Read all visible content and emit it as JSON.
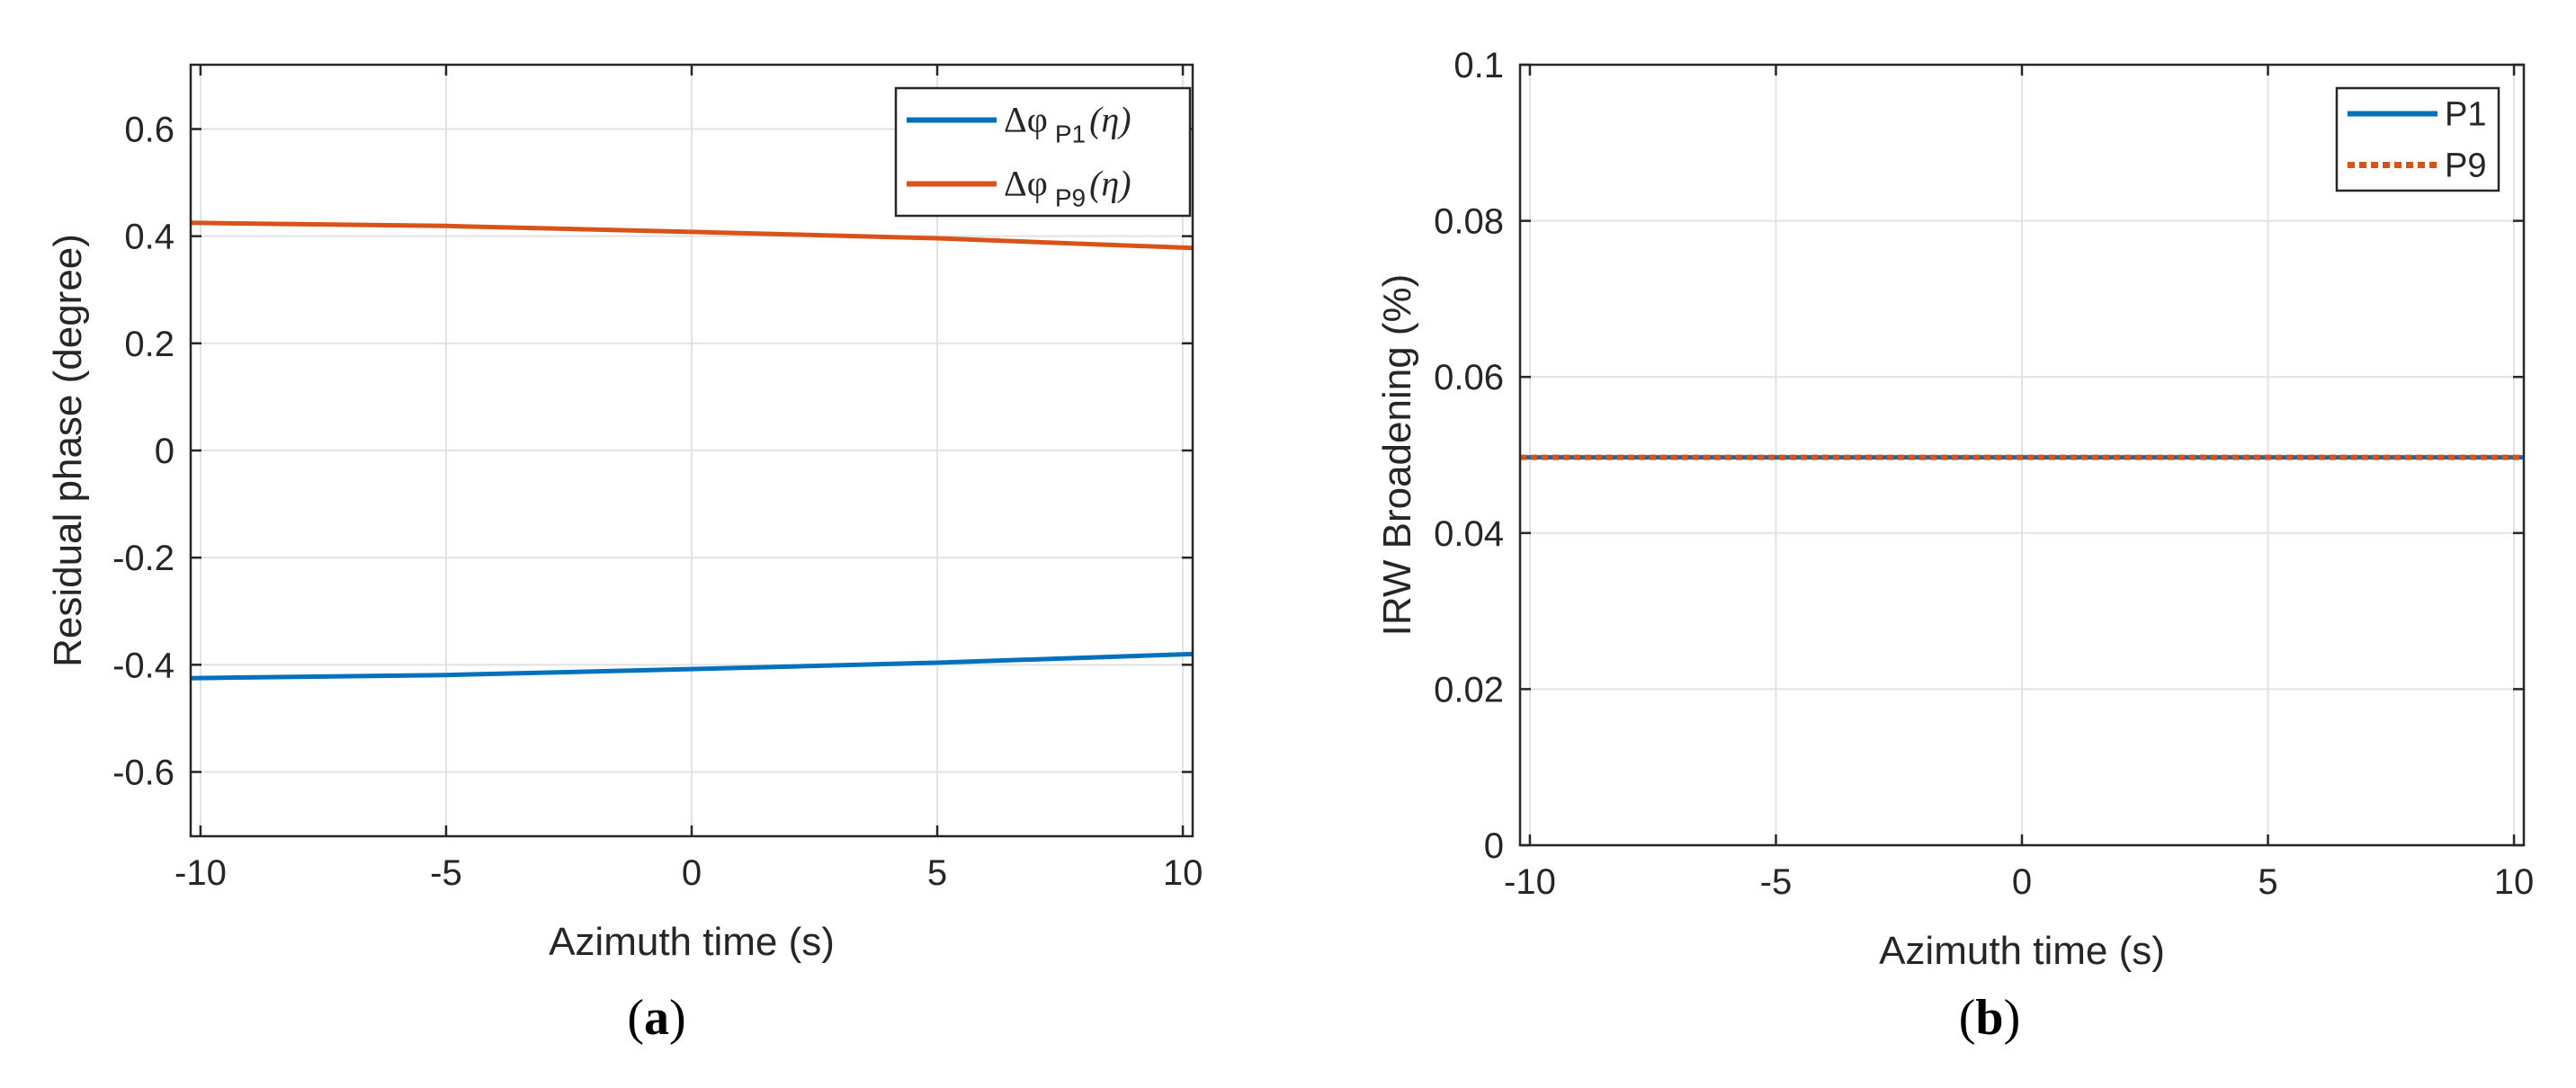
{
  "chart_data": [
    {
      "type": "line",
      "panel": "(a)",
      "panel_letter": "a",
      "xlabel": "Azimuth time (s)",
      "ylabel": "Residual phase (degree)",
      "xlim": [
        -10.2,
        10.2
      ],
      "ylim": [
        -0.72,
        0.72
      ],
      "xticks": [
        -10,
        -5,
        0,
        5,
        10
      ],
      "xtick_labels": [
        "-10",
        "-5",
        "0",
        "5",
        "10"
      ],
      "yticks": [
        -0.6,
        -0.4,
        -0.2,
        0,
        0.2,
        0.4,
        0.6
      ],
      "ytick_labels": [
        "-0.6",
        "-0.4",
        "-0.2",
        "0",
        "0.2",
        "0.4",
        "0.6"
      ],
      "grid": true,
      "legend_position": "top-right",
      "series": [
        {
          "name": "Δφ P1(η)",
          "legend_symbol": "Δφ",
          "legend_sub": "P1",
          "legend_arg": "(η)",
          "color": "#0072BD",
          "line_style": "solid",
          "x": [
            -10.2,
            -5,
            0,
            5,
            10.2
          ],
          "y": [
            -0.425,
            -0.419,
            -0.408,
            -0.396,
            -0.38
          ]
        },
        {
          "name": "Δφ P9(η)",
          "legend_symbol": "Δφ",
          "legend_sub": "P9",
          "legend_arg": "(η)",
          "color": "#D95319",
          "line_style": "solid",
          "x": [
            -10.2,
            -5,
            0,
            5,
            10.2
          ],
          "y": [
            0.425,
            0.419,
            0.408,
            0.396,
            0.378
          ]
        }
      ]
    },
    {
      "type": "line",
      "panel": "(b)",
      "panel_letter": "b",
      "xlabel": "Azimuth time (s)",
      "ylabel": "IRW Broadening (%)",
      "xlim": [
        -10.2,
        10.2
      ],
      "ylim": [
        0,
        0.1
      ],
      "xticks": [
        -10,
        -5,
        0,
        5,
        10
      ],
      "xtick_labels": [
        "-10",
        "-5",
        "0",
        "5",
        "10"
      ],
      "yticks": [
        0,
        0.02,
        0.04,
        0.06,
        0.08,
        0.1
      ],
      "ytick_labels": [
        "0",
        "0.02",
        "0.04",
        "0.06",
        "0.08",
        "0.1"
      ],
      "grid": true,
      "legend_position": "top-right",
      "series": [
        {
          "name": "P1",
          "color": "#0072BD",
          "line_style": "solid",
          "x": [
            -10.2,
            10.2
          ],
          "y": [
            0.0497,
            0.0497
          ]
        },
        {
          "name": "P9",
          "color": "#D95319",
          "line_style": "dotted",
          "x": [
            -10.2,
            10.2
          ],
          "y": [
            0.0497,
            0.0497
          ]
        }
      ]
    }
  ]
}
